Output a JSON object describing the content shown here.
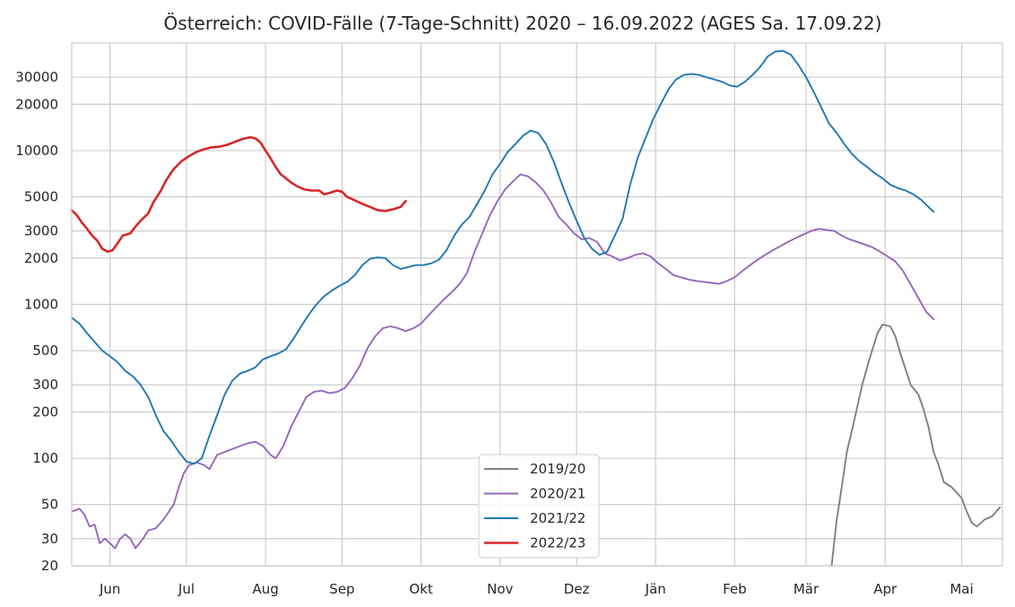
{
  "chart_data": {
    "type": "line",
    "title": "Österreich: COVID-Fälle (7-Tage-Schnitt) 2020 – 16.09.2022 (AGES Sa. 17.09.22)",
    "xlabel": "",
    "ylabel": "",
    "y_scale": "log",
    "ylim": [
      20,
      50000
    ],
    "grid": true,
    "legend_position": "lower-center",
    "x_tick_labels": [
      "Jun",
      "Jul",
      "Aug",
      "Sep",
      "Okt",
      "Nov",
      "Dez",
      "Jän",
      "Feb",
      "Mär",
      "Apr",
      "Mai"
    ],
    "x_tick_day": [
      15,
      45,
      76,
      106,
      137,
      168,
      198,
      229,
      260,
      288,
      319,
      349
    ],
    "x_range_days": [
      0,
      365
    ],
    "y_ticks": [
      20,
      30,
      50,
      100,
      200,
      300,
      500,
      1000,
      2000,
      3000,
      5000,
      10000,
      20000,
      30000
    ],
    "y_tick_labels": [
      "20",
      "30",
      "50",
      "100",
      "200",
      "300",
      "500",
      "1000",
      "2000",
      "3000",
      "5000",
      "10000",
      "20000",
      "30000"
    ],
    "series": [
      {
        "name": "2019/20",
        "color": "#808080",
        "points": [
          [
            298,
            20
          ],
          [
            300,
            40
          ],
          [
            302,
            65
          ],
          [
            304,
            110
          ],
          [
            307,
            180
          ],
          [
            310,
            300
          ],
          [
            313,
            450
          ],
          [
            316,
            650
          ],
          [
            318,
            740
          ],
          [
            321,
            720
          ],
          [
            323,
            620
          ],
          [
            325,
            480
          ],
          [
            327,
            380
          ],
          [
            329,
            300
          ],
          [
            332,
            260
          ],
          [
            334,
            210
          ],
          [
            336,
            160
          ],
          [
            338,
            110
          ],
          [
            340,
            90
          ],
          [
            342,
            70
          ],
          [
            345,
            65
          ],
          [
            347,
            60
          ],
          [
            349,
            55
          ],
          [
            351,
            45
          ],
          [
            353,
            38
          ],
          [
            355,
            36
          ],
          [
            358,
            40
          ],
          [
            361,
            42
          ],
          [
            364,
            48
          ]
        ]
      },
      {
        "name": "2020/21",
        "color": "#9467bd",
        "points": [
          [
            0,
            45
          ],
          [
            3,
            47
          ],
          [
            5,
            43
          ],
          [
            7,
            36
          ],
          [
            9,
            37
          ],
          [
            11,
            28
          ],
          [
            13,
            30
          ],
          [
            15,
            28
          ],
          [
            17,
            26
          ],
          [
            19,
            30
          ],
          [
            21,
            32
          ],
          [
            23,
            30
          ],
          [
            25,
            26
          ],
          [
            28,
            30
          ],
          [
            30,
            34
          ],
          [
            33,
            35
          ],
          [
            36,
            40
          ],
          [
            40,
            50
          ],
          [
            42,
            65
          ],
          [
            44,
            80
          ],
          [
            46,
            90
          ],
          [
            49,
            94
          ],
          [
            52,
            90
          ],
          [
            54,
            85
          ],
          [
            57,
            105
          ],
          [
            60,
            110
          ],
          [
            63,
            115
          ],
          [
            66,
            120
          ],
          [
            69,
            125
          ],
          [
            72,
            128
          ],
          [
            75,
            120
          ],
          [
            78,
            105
          ],
          [
            80,
            100
          ],
          [
            83,
            120
          ],
          [
            86,
            160
          ],
          [
            89,
            200
          ],
          [
            92,
            250
          ],
          [
            95,
            270
          ],
          [
            98,
            275
          ],
          [
            101,
            265
          ],
          [
            104,
            270
          ],
          [
            107,
            285
          ],
          [
            110,
            330
          ],
          [
            113,
            400
          ],
          [
            116,
            520
          ],
          [
            119,
            620
          ],
          [
            122,
            700
          ],
          [
            125,
            720
          ],
          [
            128,
            700
          ],
          [
            131,
            670
          ],
          [
            134,
            700
          ],
          [
            137,
            750
          ],
          [
            140,
            850
          ],
          [
            143,
            960
          ],
          [
            146,
            1080
          ],
          [
            149,
            1200
          ],
          [
            152,
            1350
          ],
          [
            155,
            1600
          ],
          [
            158,
            2200
          ],
          [
            161,
            2900
          ],
          [
            164,
            3800
          ],
          [
            167,
            4700
          ],
          [
            170,
            5600
          ],
          [
            173,
            6300
          ],
          [
            176,
            7000
          ],
          [
            179,
            6800
          ],
          [
            182,
            6200
          ],
          [
            185,
            5500
          ],
          [
            188,
            4600
          ],
          [
            191,
            3700
          ],
          [
            194,
            3300
          ],
          [
            197,
            2900
          ],
          [
            200,
            2650
          ],
          [
            203,
            2700
          ],
          [
            206,
            2550
          ],
          [
            209,
            2150
          ],
          [
            212,
            2050
          ],
          [
            215,
            1930
          ],
          [
            218,
            2000
          ],
          [
            221,
            2100
          ],
          [
            224,
            2150
          ],
          [
            227,
            2050
          ],
          [
            230,
            1850
          ],
          [
            233,
            1700
          ],
          [
            236,
            1550
          ],
          [
            239,
            1500
          ],
          [
            242,
            1450
          ],
          [
            245,
            1420
          ],
          [
            248,
            1400
          ],
          [
            251,
            1380
          ],
          [
            254,
            1360
          ],
          [
            257,
            1420
          ],
          [
            260,
            1500
          ],
          [
            263,
            1650
          ],
          [
            266,
            1800
          ],
          [
            269,
            1950
          ],
          [
            272,
            2100
          ],
          [
            275,
            2250
          ],
          [
            278,
            2400
          ],
          [
            281,
            2550
          ],
          [
            284,
            2700
          ],
          [
            287,
            2850
          ],
          [
            290,
            3000
          ],
          [
            293,
            3100
          ],
          [
            296,
            3050
          ],
          [
            299,
            3000
          ],
          [
            302,
            2800
          ],
          [
            305,
            2650
          ],
          [
            308,
            2550
          ],
          [
            311,
            2450
          ],
          [
            314,
            2350
          ],
          [
            317,
            2200
          ],
          [
            320,
            2050
          ],
          [
            323,
            1900
          ],
          [
            326,
            1650
          ],
          [
            329,
            1350
          ],
          [
            332,
            1100
          ],
          [
            335,
            900
          ],
          [
            338,
            800
          ]
        ]
      },
      {
        "name": "2021/22",
        "color": "#1f77b4",
        "points": [
          [
            0,
            820
          ],
          [
            3,
            750
          ],
          [
            6,
            650
          ],
          [
            9,
            570
          ],
          [
            12,
            500
          ],
          [
            15,
            460
          ],
          [
            18,
            420
          ],
          [
            21,
            370
          ],
          [
            24,
            340
          ],
          [
            27,
            300
          ],
          [
            30,
            250
          ],
          [
            33,
            190
          ],
          [
            36,
            150
          ],
          [
            39,
            130
          ],
          [
            42,
            110
          ],
          [
            45,
            95
          ],
          [
            48,
            92
          ],
          [
            51,
            100
          ],
          [
            54,
            140
          ],
          [
            57,
            190
          ],
          [
            60,
            260
          ],
          [
            63,
            320
          ],
          [
            66,
            355
          ],
          [
            69,
            370
          ],
          [
            72,
            390
          ],
          [
            75,
            440
          ],
          [
            78,
            460
          ],
          [
            81,
            480
          ],
          [
            84,
            510
          ],
          [
            87,
            600
          ],
          [
            90,
            720
          ],
          [
            93,
            860
          ],
          [
            96,
            1000
          ],
          [
            99,
            1130
          ],
          [
            102,
            1230
          ],
          [
            105,
            1320
          ],
          [
            108,
            1400
          ],
          [
            111,
            1550
          ],
          [
            114,
            1800
          ],
          [
            117,
            1980
          ],
          [
            120,
            2020
          ],
          [
            123,
            2000
          ],
          [
            126,
            1800
          ],
          [
            129,
            1700
          ],
          [
            132,
            1750
          ],
          [
            135,
            1800
          ],
          [
            138,
            1800
          ],
          [
            141,
            1850
          ],
          [
            144,
            1950
          ],
          [
            147,
            2250
          ],
          [
            150,
            2800
          ],
          [
            153,
            3300
          ],
          [
            156,
            3700
          ],
          [
            159,
            4500
          ],
          [
            162,
            5500
          ],
          [
            165,
            7000
          ],
          [
            168,
            8200
          ],
          [
            171,
            9800
          ],
          [
            174,
            11000
          ],
          [
            177,
            12500
          ],
          [
            180,
            13500
          ],
          [
            183,
            13000
          ],
          [
            186,
            11000
          ],
          [
            189,
            8500
          ],
          [
            192,
            6200
          ],
          [
            195,
            4600
          ],
          [
            198,
            3500
          ],
          [
            201,
            2700
          ],
          [
            204,
            2300
          ],
          [
            207,
            2100
          ],
          [
            210,
            2200
          ],
          [
            213,
            2800
          ],
          [
            216,
            3600
          ],
          [
            219,
            6000
          ],
          [
            222,
            9000
          ],
          [
            225,
            12000
          ],
          [
            228,
            16000
          ],
          [
            231,
            20000
          ],
          [
            234,
            25000
          ],
          [
            237,
            29000
          ],
          [
            240,
            31000
          ],
          [
            243,
            31500
          ],
          [
            246,
            31000
          ],
          [
            249,
            30000
          ],
          [
            252,
            29000
          ],
          [
            255,
            28000
          ],
          [
            258,
            26500
          ],
          [
            261,
            26000
          ],
          [
            264,
            28000
          ],
          [
            267,
            31000
          ],
          [
            270,
            35000
          ],
          [
            273,
            41000
          ],
          [
            276,
            44000
          ],
          [
            279,
            44500
          ],
          [
            282,
            42000
          ],
          [
            285,
            36000
          ],
          [
            288,
            30000
          ],
          [
            291,
            24000
          ],
          [
            294,
            19000
          ],
          [
            297,
            15000
          ],
          [
            300,
            13000
          ],
          [
            303,
            11000
          ],
          [
            306,
            9500
          ],
          [
            309,
            8500
          ],
          [
            312,
            7800
          ],
          [
            315,
            7100
          ],
          [
            318,
            6600
          ],
          [
            321,
            6000
          ],
          [
            324,
            5700
          ],
          [
            327,
            5500
          ],
          [
            330,
            5200
          ],
          [
            333,
            4800
          ],
          [
            336,
            4300
          ],
          [
            338,
            4000
          ]
        ]
      },
      {
        "name": "2022/23",
        "color": "#d62728",
        "points": [
          [
            0,
            4100
          ],
          [
            2,
            3800
          ],
          [
            4,
            3400
          ],
          [
            6,
            3100
          ],
          [
            8,
            2800
          ],
          [
            10,
            2600
          ],
          [
            12,
            2300
          ],
          [
            14,
            2200
          ],
          [
            16,
            2250
          ],
          [
            18,
            2500
          ],
          [
            20,
            2800
          ],
          [
            23,
            2900
          ],
          [
            25,
            3200
          ],
          [
            27,
            3500
          ],
          [
            30,
            3900
          ],
          [
            32,
            4600
          ],
          [
            35,
            5500
          ],
          [
            37,
            6400
          ],
          [
            40,
            7600
          ],
          [
            43,
            8500
          ],
          [
            46,
            9200
          ],
          [
            49,
            9800
          ],
          [
            52,
            10200
          ],
          [
            55,
            10500
          ],
          [
            58,
            10600
          ],
          [
            61,
            10900
          ],
          [
            64,
            11400
          ],
          [
            67,
            11900
          ],
          [
            70,
            12200
          ],
          [
            72,
            12000
          ],
          [
            74,
            11300
          ],
          [
            76,
            10000
          ],
          [
            78,
            8900
          ],
          [
            80,
            7800
          ],
          [
            82,
            7000
          ],
          [
            84,
            6600
          ],
          [
            86,
            6200
          ],
          [
            88,
            5900
          ],
          [
            91,
            5600
          ],
          [
            94,
            5500
          ],
          [
            97,
            5500
          ],
          [
            99,
            5200
          ],
          [
            101,
            5300
          ],
          [
            104,
            5500
          ],
          [
            106,
            5400
          ],
          [
            108,
            5000
          ],
          [
            111,
            4750
          ],
          [
            114,
            4500
          ],
          [
            117,
            4300
          ],
          [
            120,
            4100
          ],
          [
            123,
            4050
          ],
          [
            126,
            4150
          ],
          [
            129,
            4300
          ],
          [
            131,
            4700
          ]
        ]
      }
    ]
  }
}
